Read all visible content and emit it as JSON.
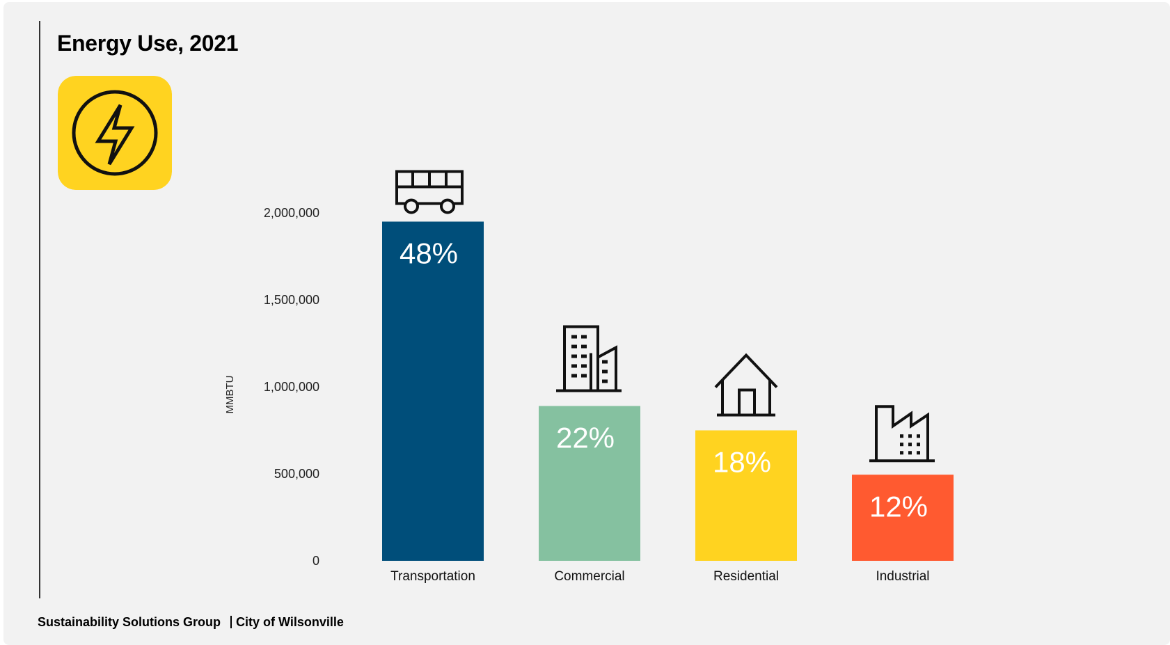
{
  "title": "Energy Use, 2021",
  "footer": {
    "left": "Sustainability Solutions Group",
    "right": "City of Wilsonville"
  },
  "badge": {
    "icon": "lightning-bolt-icon",
    "color": "#FFD320"
  },
  "chart_data": {
    "type": "bar",
    "title": "Energy Use, 2021",
    "ylabel": "MMBTU",
    "xlabel": "",
    "ylim": [
      0,
      2000000
    ],
    "yticks": [
      0,
      500000,
      1000000,
      1500000,
      2000000
    ],
    "ytick_labels": [
      "0",
      "500,000",
      "1,000,000",
      "1,500,000",
      "2,000,000"
    ],
    "grid": false,
    "categories": [
      "Transportation",
      "Commercial",
      "Residential",
      "Industrial"
    ],
    "values": [
      1950000,
      890000,
      750000,
      495000
    ],
    "labels": [
      "48%",
      "22%",
      "18%",
      "12%"
    ],
    "colors": [
      "#004E7A",
      "#85C1A0",
      "#FFD320",
      "#FF5A30"
    ],
    "icons": [
      "bus-icon",
      "office-building-icon",
      "house-icon",
      "factory-icon"
    ]
  }
}
